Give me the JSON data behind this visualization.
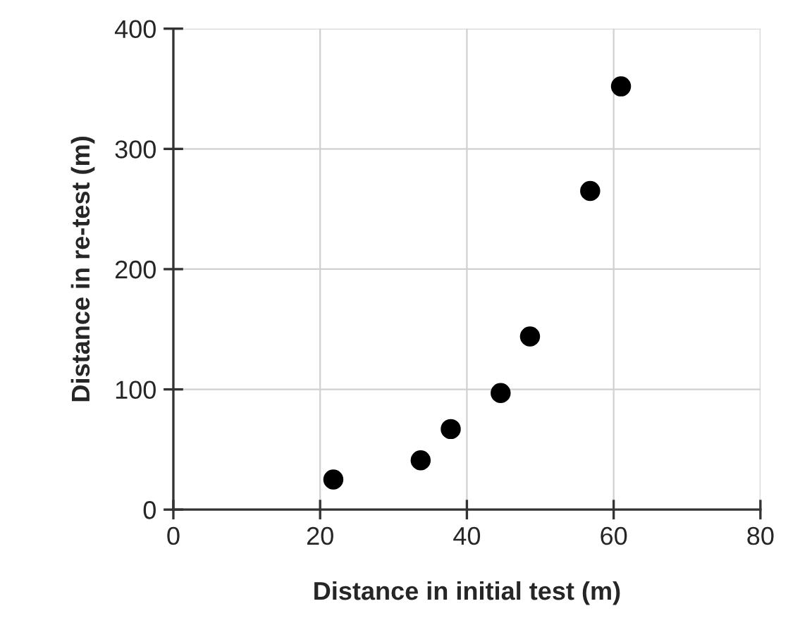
{
  "chart_data": {
    "type": "scatter",
    "xlabel": "Distance in initial test (m)",
    "ylabel": "Distance in re-test (m)",
    "x": [
      21.8,
      33.7,
      37.8,
      44.6,
      48.6,
      56.8,
      61.0
    ],
    "series": [
      {
        "color": "#000000",
        "values": [
          25,
          41,
          67,
          97,
          144,
          265,
          352
        ]
      }
    ],
    "xlim": [
      0,
      80
    ],
    "ylim": [
      0,
      400
    ],
    "xticks": [
      0,
      20,
      40,
      60,
      80
    ],
    "yticks": [
      0,
      100,
      200,
      300,
      400
    ],
    "grid": true,
    "marker": "circle"
  }
}
